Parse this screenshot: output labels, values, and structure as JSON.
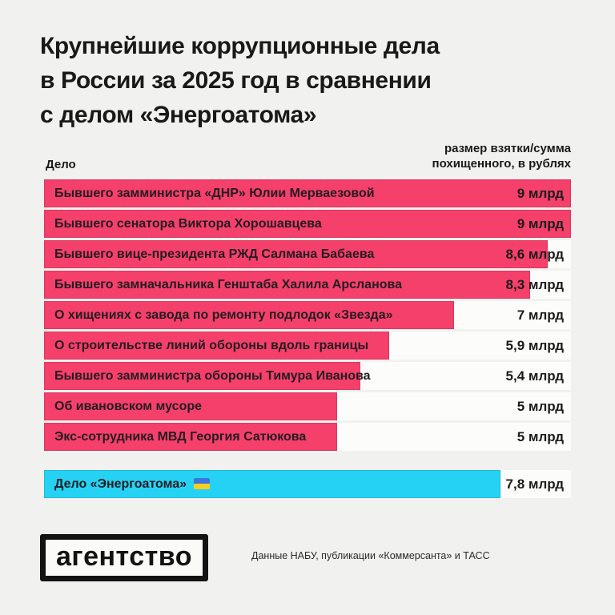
{
  "page": {
    "title": "Крупнейшие коррупционные дела\nв России за 2025 год в сравнении\nс делом «Энергоатома»",
    "background_color": "#F1F1EF"
  },
  "table_header": {
    "case_column": "Дело",
    "value_column": "размер взятки/сумма\nпохищенного, в рублях"
  },
  "chart_data": {
    "type": "bar",
    "orientation": "horizontal",
    "title": "Крупнейшие коррупционные дела в России за 2025 год в сравнении с делом «Энергоатома»",
    "unit": "млрд рублей",
    "xlim": [
      0,
      9
    ],
    "grid": false,
    "legend": false,
    "bar_color": "#F4406A",
    "highlight_color": "#25D2F3",
    "row_background_color": "#FCFCFB",
    "categories": [
      "Бывшего замминистра «ДНР» Юлии Мерваезовой",
      "Бывшего сенатора Виктора Хорошавцева",
      "Бывшего вице-президента РЖД Салмана Бабаева",
      "Бывшего замначальника Генштаба Халила Арсланова",
      "О хищениях с завода по ремонту подлодок «Звезда»",
      "О строительстве линий обороны вдоль границы",
      "Бывшего замминистра обороны Тимура Иванова",
      "Об ивановском мусоре",
      "Экс-сотрудника МВД Георгия Сатюкова"
    ],
    "values": [
      9,
      9,
      8.6,
      8.3,
      7,
      5.9,
      5.4,
      5,
      5
    ],
    "value_labels": [
      "9 млрд",
      "9 млрд",
      "8,6 млрд",
      "8,3 млрд",
      "7 млрд",
      "5,9 млрд",
      "5,4 млрд",
      "5 млрд",
      "5 млрд"
    ],
    "highlight": {
      "label": "Дело «Энергоатома»",
      "flag_icon": "ukraine-flag-icon",
      "value": 7.8,
      "value_label": "7,8 млрд"
    }
  },
  "footer": {
    "logo_text": "агентство",
    "source_text": "Данные НАБУ, публикации «Коммерсанта» и ТАСС"
  }
}
